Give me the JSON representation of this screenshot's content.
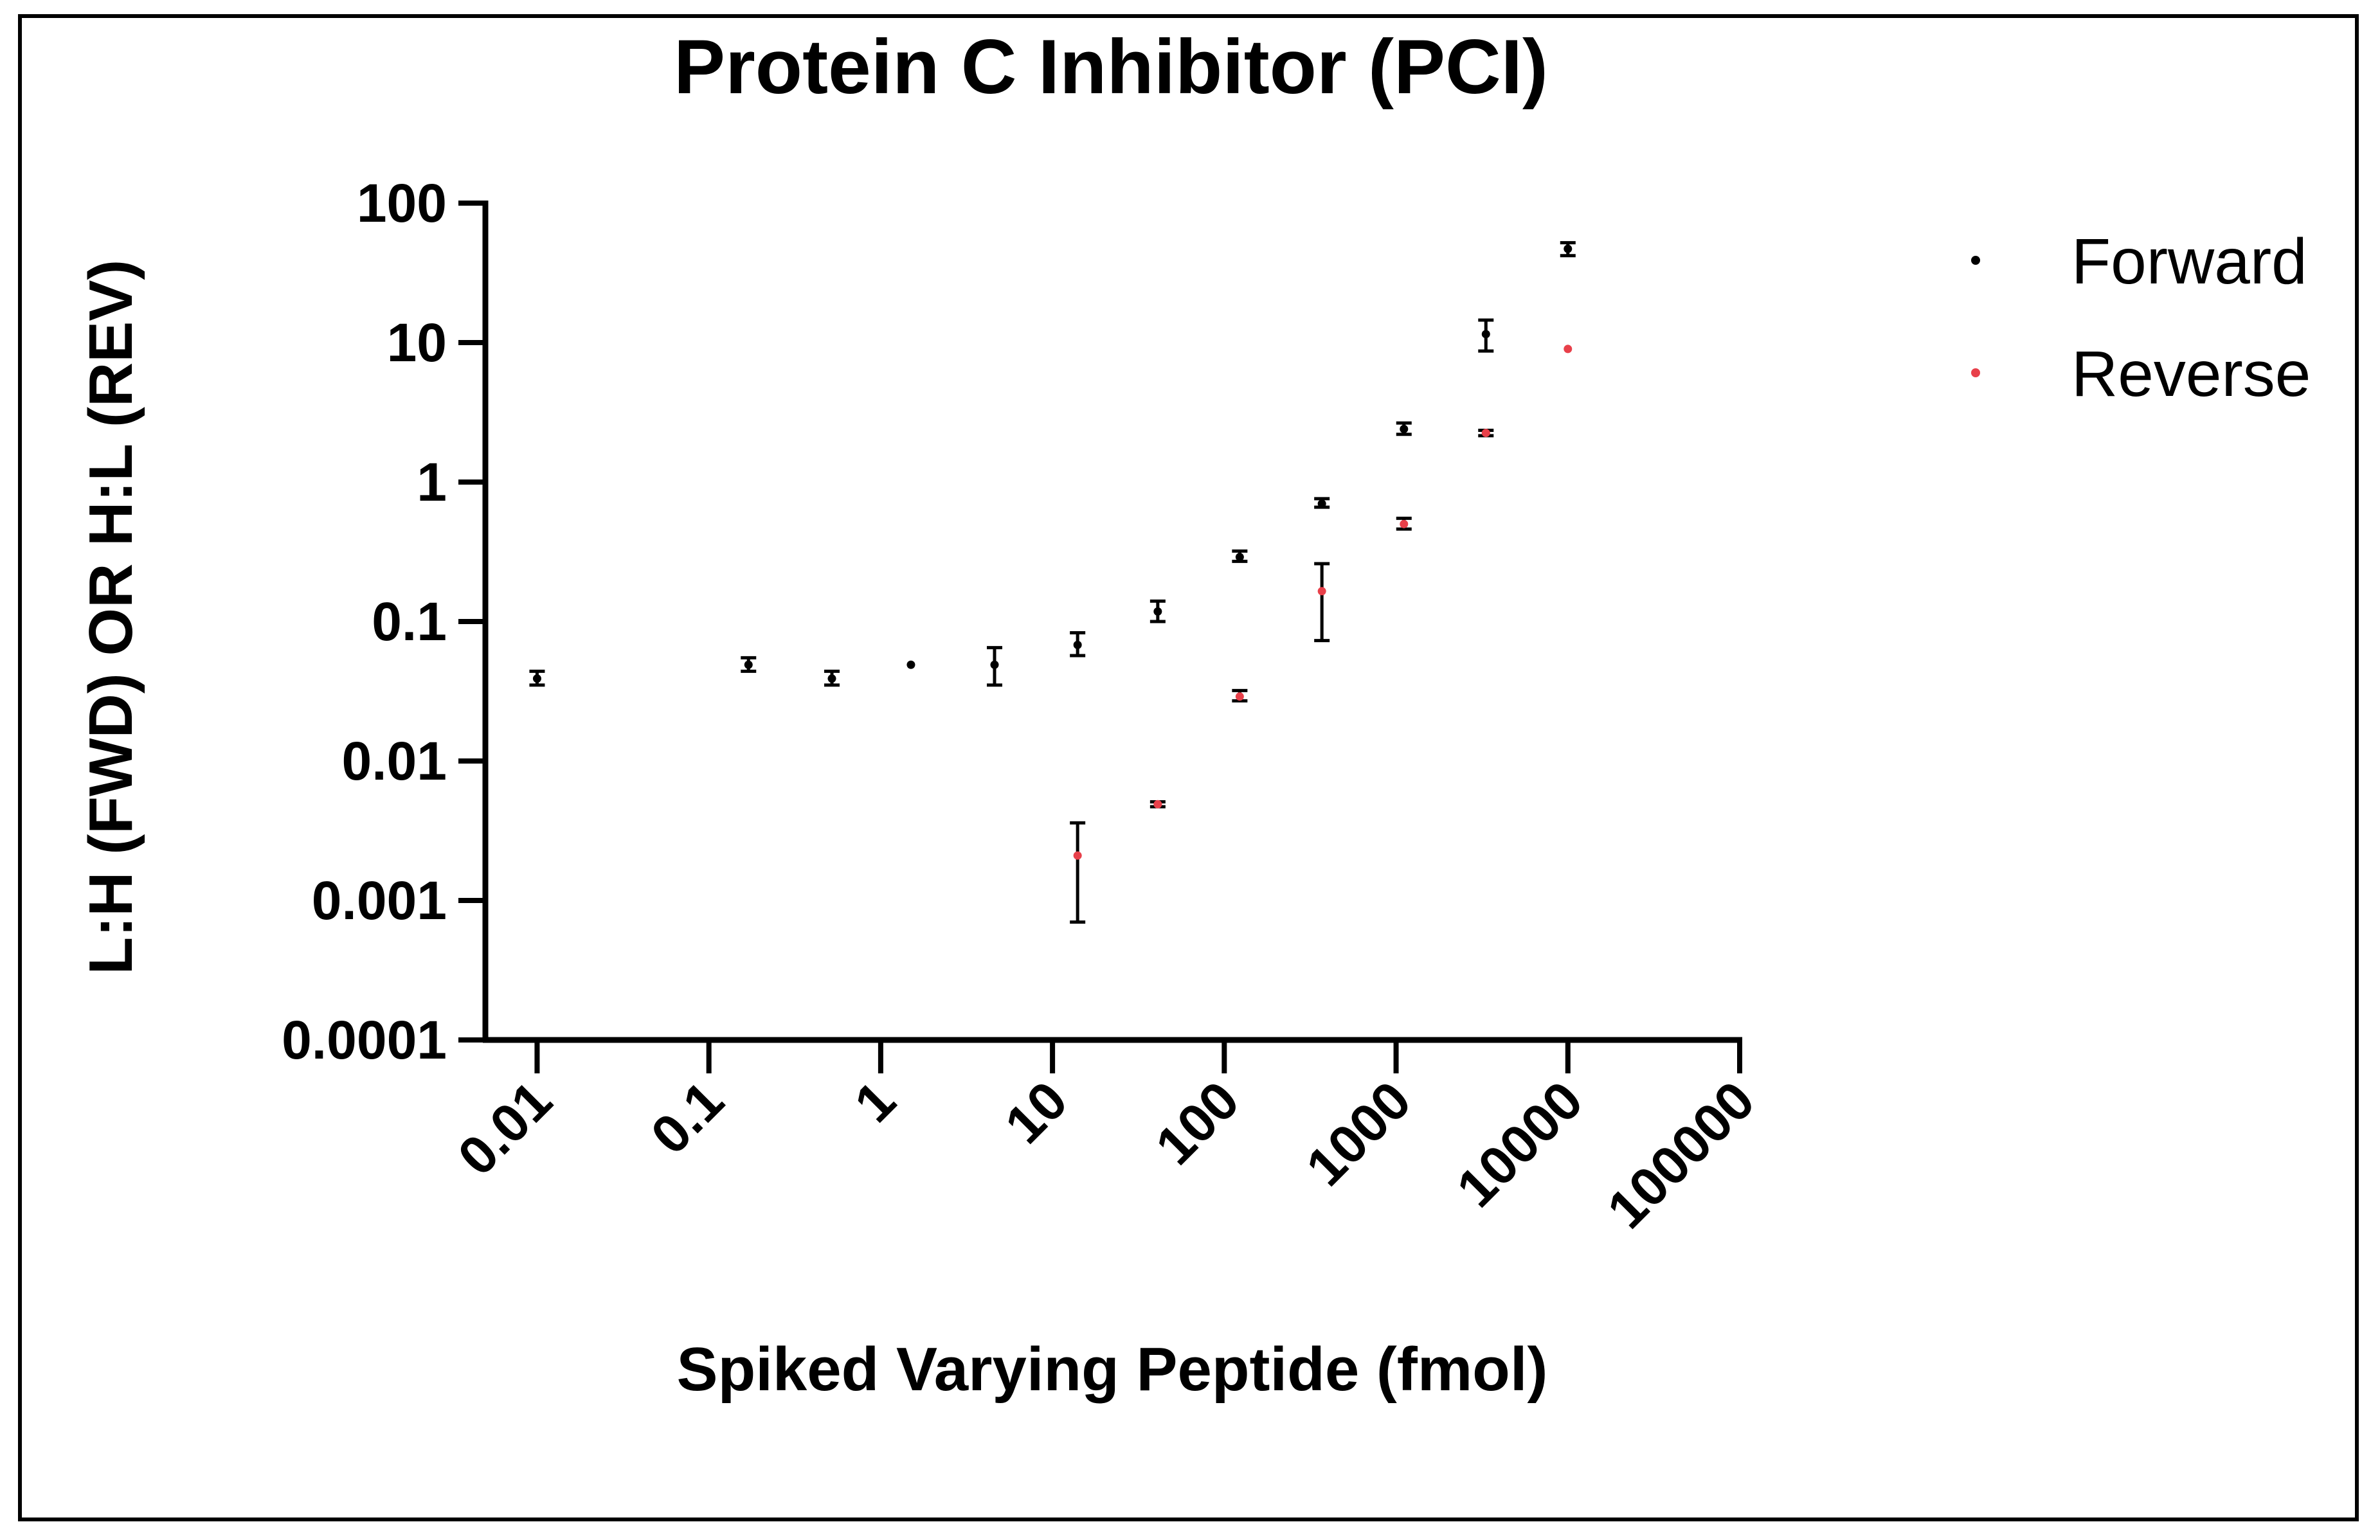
{
  "chart_data": {
    "type": "scatter",
    "title": "Protein C Inhibitor (PCI)",
    "xlabel": "Spiked Varying Peptide (fmol)",
    "ylabel": "L:H (FWD) OR H:L (REV)",
    "xscale": "log",
    "yscale": "log",
    "xlim": [
      0.005,
      100000
    ],
    "ylim": [
      0.0001,
      100
    ],
    "x_tick_labels": [
      "0.01",
      "0.1",
      "1",
      "10",
      "100",
      "1000",
      "10000",
      "100000"
    ],
    "x_tick_values": [
      0.01,
      0.1,
      1,
      10,
      100,
      1000,
      10000,
      100000
    ],
    "y_tick_labels": [
      "0.0001",
      "0.001",
      "0.01",
      "0.1",
      "1",
      "10",
      "100"
    ],
    "y_tick_values": [
      0.0001,
      0.001,
      0.01,
      0.1,
      1,
      10,
      100
    ],
    "legend_position": "top-right",
    "series": [
      {
        "name": "Forward",
        "color": "#000000",
        "points": [
          {
            "x": 0.01,
            "y": 0.039,
            "low": 0.035,
            "high": 0.044
          },
          {
            "x": 0.17,
            "y": 0.049,
            "low": 0.044,
            "high": 0.055
          },
          {
            "x": 0.52,
            "y": 0.039,
            "low": 0.035,
            "high": 0.044
          },
          {
            "x": 1.5,
            "y": 0.049,
            "low": 0.049,
            "high": 0.049
          },
          {
            "x": 4.6,
            "y": 0.049,
            "low": 0.035,
            "high": 0.065
          },
          {
            "x": 14,
            "y": 0.068,
            "low": 0.057,
            "high": 0.083
          },
          {
            "x": 41,
            "y": 0.118,
            "low": 0.1,
            "high": 0.14
          },
          {
            "x": 123,
            "y": 0.29,
            "low": 0.27,
            "high": 0.32
          },
          {
            "x": 370,
            "y": 0.7,
            "low": 0.66,
            "high": 0.76
          },
          {
            "x": 1111,
            "y": 2.4,
            "low": 2.2,
            "high": 2.65
          },
          {
            "x": 3333,
            "y": 11.5,
            "low": 8.7,
            "high": 14.5
          },
          {
            "x": 10000,
            "y": 47,
            "low": 42,
            "high": 52
          }
        ]
      },
      {
        "name": "Reverse",
        "color": "#e8404a",
        "points": [
          {
            "x": 14,
            "y": 0.0021,
            "low": 0.0007,
            "high": 0.0036
          },
          {
            "x": 41,
            "y": 0.0049,
            "low": 0.0047,
            "high": 0.0051
          },
          {
            "x": 123,
            "y": 0.029,
            "low": 0.027,
            "high": 0.032
          },
          {
            "x": 370,
            "y": 0.165,
            "low": 0.073,
            "high": 0.26
          },
          {
            "x": 1111,
            "y": 0.5,
            "low": 0.46,
            "high": 0.55
          },
          {
            "x": 3333,
            "y": 2.25,
            "low": 2.15,
            "high": 2.35
          },
          {
            "x": 10000,
            "y": 9.0,
            "low": 9.0,
            "high": 9.0
          }
        ]
      }
    ]
  }
}
